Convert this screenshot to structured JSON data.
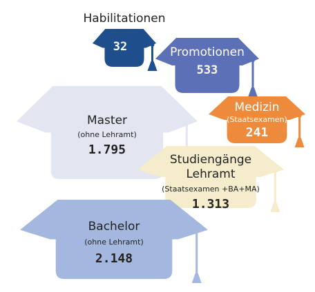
{
  "chart_data": {
    "type": "pictogram",
    "categories": [
      "Habilitationen",
      "Promotionen",
      "Medizin",
      "Master",
      "Studiengänge Lehramt",
      "Bachelor"
    ],
    "notes": [
      null,
      null,
      "(Staatsexamen)",
      "(ohne Lehramt)",
      "(Staatsexamen +BA+MA)",
      "(ohne Lehramt)"
    ],
    "values": [
      32,
      533,
      241,
      1795,
      1313,
      2148
    ],
    "value_labels": [
      "32",
      "533",
      "241",
      "1.795",
      "1.313",
      "2.148"
    ],
    "colors": [
      "#1f4e8c",
      "#5b70b6",
      "#ee8a3c",
      "#e3e5f1",
      "#f4ecca",
      "#a4b7de"
    ]
  }
}
